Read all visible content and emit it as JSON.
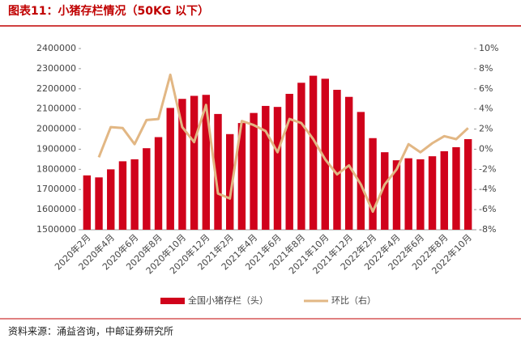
{
  "title": "图表11：小猪存栏情况（50KG 以下）",
  "source": "资料来源：涌益咨询，中邮证券研究所",
  "chart_data": {
    "type": "bar-line",
    "categories": [
      "2020年2月",
      null,
      "2020年4月",
      null,
      "2020年6月",
      null,
      "2020年8月",
      null,
      "2020年10月",
      null,
      "2020年12月",
      null,
      "2021年2月",
      null,
      "2021年4月",
      null,
      "2021年6月",
      null,
      "2021年8月",
      null,
      "2021年10月",
      null,
      "2021年12月",
      null,
      "2022年2月",
      null,
      "2022年4月",
      null,
      "2022年6月",
      null,
      "2022年8月",
      null,
      "2022年10月"
    ],
    "series": [
      {
        "name": "全国小猪存栏（头）",
        "type": "bar",
        "color": "#d0021b",
        "values": [
          1770000,
          1760000,
          1800000,
          1840000,
          1850000,
          1905000,
          1960000,
          2105000,
          2150000,
          2165000,
          2170000,
          2075000,
          1975000,
          2030000,
          2080000,
          2115000,
          2110000,
          2175000,
          2230000,
          2265000,
          2250000,
          2195000,
          2160000,
          2085000,
          1955000,
          1885000,
          1845000,
          1855000,
          1850000,
          1865000,
          1890000,
          1910000,
          1950000
        ]
      },
      {
        "name": "环比（右）",
        "type": "line",
        "axis": "y2",
        "color": "#e2b784",
        "values": [
          null,
          -0.8,
          2.2,
          2.1,
          0.5,
          2.9,
          3.0,
          7.4,
          2.2,
          0.7,
          4.4,
          -4.4,
          -4.9,
          2.8,
          2.4,
          1.8,
          -0.3,
          3.0,
          2.6,
          1.0,
          -1.0,
          -2.5,
          -1.6,
          -3.5,
          -6.2,
          -3.5,
          -2.0,
          0.5,
          -0.3,
          0.6,
          1.3,
          1.0,
          2.1
        ]
      }
    ],
    "ylim": [
      1500000,
      2400000
    ],
    "yticks": [
      1500000,
      1600000,
      1700000,
      1800000,
      1900000,
      2000000,
      2100000,
      2200000,
      2300000,
      2400000
    ],
    "y2lim": [
      -8,
      10
    ],
    "y2ticks": [
      {
        "value": -8,
        "label": "-8%"
      },
      {
        "value": -6,
        "label": "-6%"
      },
      {
        "value": -4,
        "label": "-4%"
      },
      {
        "value": -2,
        "label": "-2%"
      },
      {
        "value": 0,
        "label": "0%"
      },
      {
        "value": 2,
        "label": "2%"
      },
      {
        "value": 4,
        "label": "4%"
      },
      {
        "value": 6,
        "label": "6%"
      },
      {
        "value": 8,
        "label": "8%"
      },
      {
        "value": 10,
        "label": "10%"
      }
    ],
    "legend": "bottom"
  }
}
